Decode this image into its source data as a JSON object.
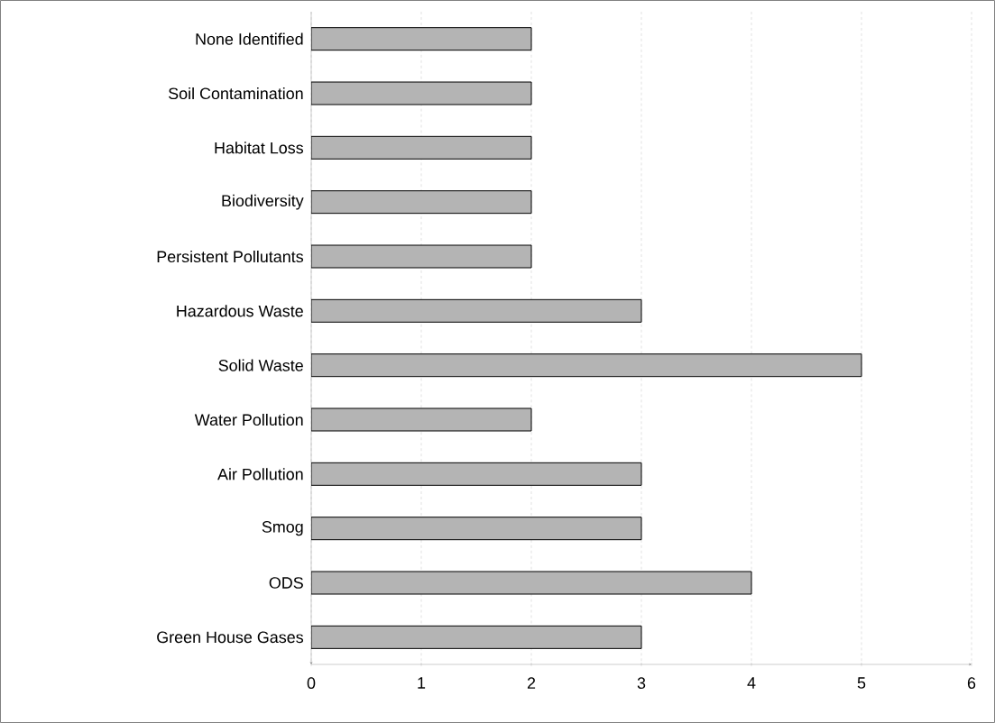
{
  "chart_data": {
    "type": "bar",
    "orientation": "horizontal",
    "categories": [
      "None Identified",
      "Soil Contamination",
      "Habitat Loss",
      "Biodiversity",
      "Persistent Pollutants",
      "Hazardous Waste",
      "Solid Waste",
      "Water Pollution",
      "Air Pollution",
      "Smog",
      "ODS",
      "Green House Gases"
    ],
    "values": [
      2,
      2,
      2,
      2,
      2,
      3,
      5,
      2,
      3,
      3,
      4,
      3
    ],
    "color": "#b4b4b4",
    "xlim": [
      0,
      6
    ],
    "xticks": [
      0,
      1,
      2,
      3,
      4,
      5,
      6
    ],
    "grid": "x"
  }
}
